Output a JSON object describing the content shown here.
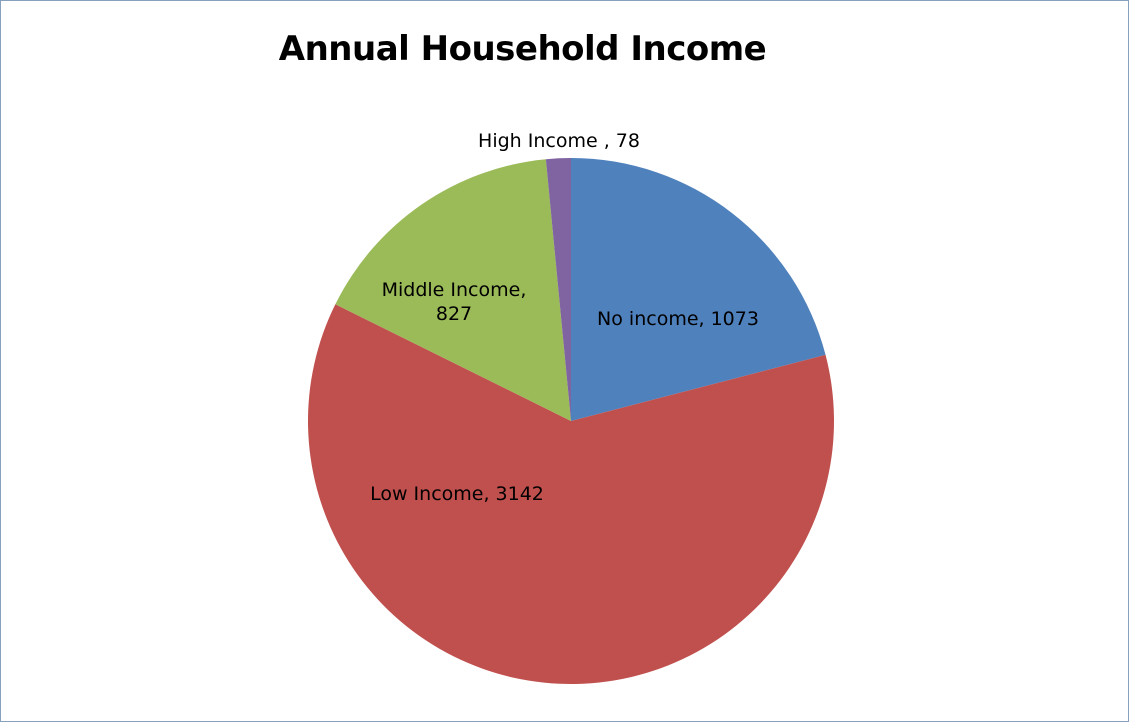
{
  "chart_data": {
    "type": "pie",
    "title": "Annual Household Income",
    "start_angle_deg": 0,
    "direction": "clockwise",
    "slices": [
      {
        "category": "No income",
        "value": 1073,
        "color": "#4f81bd",
        "label_lines": [
          "No income, 1073"
        ]
      },
      {
        "category": "Low Income",
        "value": 3142,
        "color": "#c0504d",
        "label_lines": [
          "Low Income, 3142"
        ]
      },
      {
        "category": "Middle Income",
        "value": 827,
        "color": "#9bbb59",
        "label_lines": [
          "Middle Income,",
          "827"
        ]
      },
      {
        "category": "High Income ",
        "value": 78,
        "color": "#8064a2",
        "label_lines": [
          "High Income , 78"
        ]
      }
    ]
  }
}
